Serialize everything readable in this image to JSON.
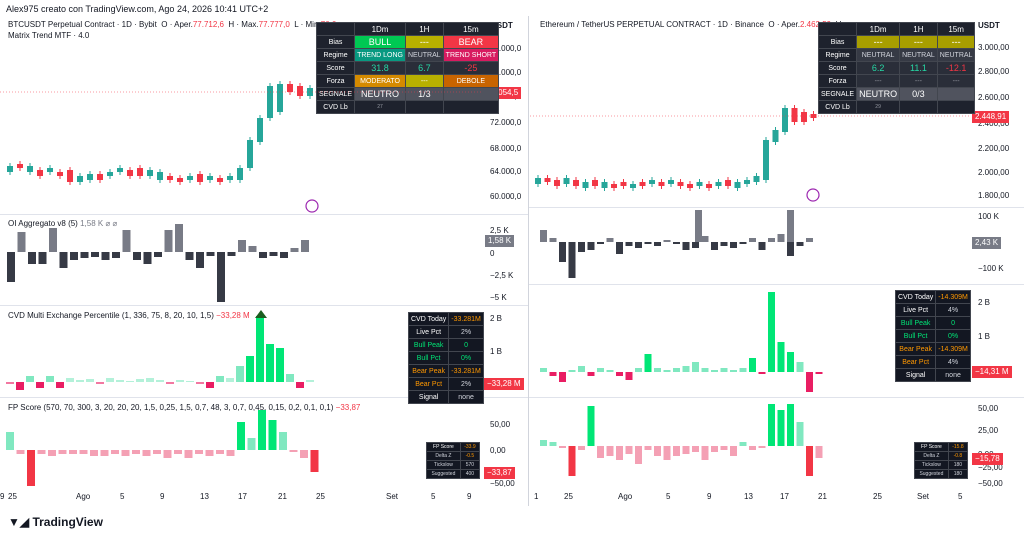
{
  "header": {
    "text": "Alex975 creato con TradingView.com, Ago 24, 2026 10:41 UTC+2"
  },
  "footer": {
    "logo_text": "TradingView"
  },
  "colors": {
    "up": "#089981",
    "down": "#f23645",
    "bright_green": "#00e676",
    "teal": "#26a69a",
    "pink": "#f48fb1",
    "gray_bar": "#787b86",
    "dark_bar": "#363a45"
  },
  "left": {
    "title": "BTCUSDT Perpetual Contract · 1D · Bybit",
    "ohlc_o": "O · Aper.",
    "ohlc_o_val": "77.712,6",
    "ohlc_h": "H · Max.",
    "ohlc_h_val": "77.777,0",
    "ohlc_l": "L · Min.",
    "ohlc_l_val": "76.6",
    "indicator": "Matrix Trend MTF · 4.0",
    "axis_title": "USDT",
    "price_ticks": [
      "84.000,0",
      "80.000,0",
      "76.000,0",
      "72.000,0",
      "68.000,0",
      "64.000,0",
      "60.000,0"
    ],
    "price_badge": "77.054,5",
    "oi_title": "OI Aggregato",
    "oi_suffix": "v8 (5)",
    "oi_val": "1,58 K",
    "oi_ticks": [
      "2,5 K",
      "0",
      "−2,5 K",
      "−5 K"
    ],
    "oi_badge": "1,58 K",
    "cvd_title": "CVD Multi Exchange Percentile (1, 336, 75, 8, 20, 10, 1,5)",
    "cvd_val": "−33,28 M",
    "cvd_ticks": [
      "2 B",
      "1 B"
    ],
    "cvd_badge": "−33,28 M",
    "fp_title": "FP Score (570, 70, 300, 3, 20, 20, 20, 1,5, 0,25, 1,5, 0,7, 48, 3, 0,7, 0,45, 0,15, 0,2, 0,1, 0,1)",
    "fp_val": "−33,87",
    "fp_ticks": [
      "50,00",
      "0,00",
      "−50,00"
    ],
    "fp_badge": "−33,87",
    "time_ticks": [
      "25",
      "Ago",
      "5",
      "9",
      "13",
      "17",
      "21",
      "25",
      "Set",
      "5",
      "9"
    ],
    "matrix": {
      "header": [
        "",
        "1Dm",
        "1H",
        "15m"
      ],
      "rows": [
        [
          "Bias",
          "BULL",
          "---",
          "BEAR"
        ],
        [
          "Regime",
          "TREND LONG",
          "NEUTRAL",
          "TREND SHORT"
        ],
        [
          "Score",
          "31.8",
          "6.7",
          "-25"
        ],
        [
          "Forza",
          "MODERATO",
          "---",
          "DEBOLE"
        ],
        [
          "SEGNALE",
          "NEUTRO",
          "1/3",
          ""
        ],
        [
          "CVD Lb",
          "27",
          "",
          ""
        ]
      ]
    },
    "cvd_table": [
      [
        "CVD Today",
        "-33.281M"
      ],
      [
        "Live Pct",
        "2%"
      ],
      [
        "Bull Peak",
        "0"
      ],
      [
        "Bull Pct",
        "0%"
      ],
      [
        "Bear Peak",
        "-33.281M"
      ],
      [
        "Bear Pct",
        "2%"
      ],
      [
        "Signal",
        "none"
      ]
    ],
    "fp_table": [
      [
        "FP Score",
        "-33.9"
      ],
      [
        "Delta Z",
        "-0.5"
      ],
      [
        "Tickslow",
        "570"
      ],
      [
        "Suggested",
        "400"
      ]
    ],
    "candles": [
      [
        1,
        0
      ],
      [
        0,
        0
      ],
      [
        1,
        0
      ],
      [
        0,
        0
      ],
      [
        1,
        0
      ],
      [
        0,
        0
      ],
      [
        1,
        1
      ],
      [
        0,
        1
      ],
      [
        0,
        1
      ],
      [
        1,
        1
      ],
      [
        0,
        1
      ],
      [
        1,
        0
      ],
      [
        0,
        1
      ],
      [
        1,
        1
      ],
      [
        0,
        1
      ],
      [
        0,
        1
      ],
      [
        0,
        0
      ],
      [
        1,
        0
      ],
      [
        0,
        1
      ],
      [
        1,
        1
      ],
      [
        0,
        1
      ],
      [
        0,
        0
      ],
      [
        1,
        1
      ],
      [
        1,
        1
      ],
      [
        0,
        1
      ],
      [
        1,
        1
      ],
      [
        1,
        1
      ],
      [
        1,
        1
      ],
      [
        1,
        0
      ],
      [
        0,
        1
      ],
      [
        1,
        1
      ]
    ]
  },
  "right": {
    "title": "Ethereum / TetherUS PERPETUAL CONTRACT · 1D · Binance",
    "ohlc_o": "O · Aper.",
    "ohlc_o_val": "2.462,59",
    "ohlc_h": "H",
    "axis_title": "USDT",
    "price_ticks": [
      "3.000,00",
      "2.800,00",
      "2.600,00",
      "2.400,00",
      "2.200,00",
      "2.000,00",
      "1.800,00"
    ],
    "price_badge": "2.448,91",
    "oi_ticks": [
      "100 K",
      "0",
      "−100 K"
    ],
    "oi_badge": "2,43 K",
    "cvd_ticks": [
      "2 B",
      "1 B"
    ],
    "cvd_badge": "−14,31 M",
    "fp_ticks": [
      "50,00",
      "25,00",
      "0,00",
      "−25,00",
      "−50,00"
    ],
    "fp_badge": "−15,78",
    "time_ticks": [
      "1",
      "25",
      "Ago",
      "5",
      "9",
      "13",
      "17",
      "21",
      "25",
      "Set",
      "5",
      "9"
    ],
    "matrix": {
      "header": [
        "",
        "1Dm",
        "1H",
        "15m"
      ],
      "rows": [
        [
          "Bias",
          "---",
          "---",
          "---"
        ],
        [
          "Regime",
          "NEUTRAL",
          "NEUTRAL",
          "NEUTRAL"
        ],
        [
          "Score",
          "6.2",
          "11.1",
          "-12.1"
        ],
        [
          "Forza",
          "---",
          "---",
          "---"
        ],
        [
          "SEGNALE",
          "NEUTRO",
          "0/3",
          ""
        ],
        [
          "CVD Lb",
          "29",
          "",
          ""
        ]
      ]
    },
    "cvd_table": [
      [
        "CVD Today",
        "-14.309M"
      ],
      [
        "Live Pct",
        "4%"
      ],
      [
        "Bull Peak",
        "0"
      ],
      [
        "Bull Pct",
        "0%"
      ],
      [
        "Bear Peak",
        "-14.309M"
      ],
      [
        "Bear Pct",
        "4%"
      ],
      [
        "Signal",
        "none"
      ]
    ],
    "fp_table": [
      [
        "FP Score",
        "-15.8"
      ],
      [
        "Delta Z",
        "-0.8"
      ],
      [
        "Tickslow",
        "180"
      ],
      [
        "Suggested",
        "180"
      ]
    ]
  }
}
